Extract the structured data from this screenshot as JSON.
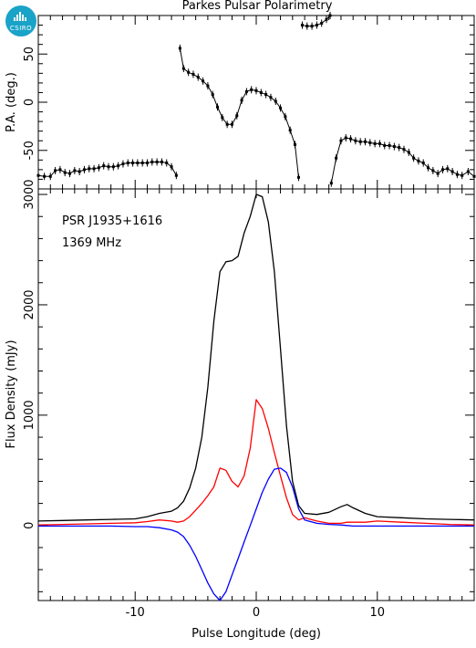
{
  "logo": {
    "text": "CSIRO",
    "color": "#1aa3c8"
  },
  "chart_data": [
    {
      "type": "scatter",
      "title": "Parkes Pulsar Polarimetry",
      "ylabel": "P.A. (deg.)",
      "xlim": [
        -18,
        18
      ],
      "ylim": [
        -90,
        90
      ],
      "yticks": [
        -50,
        0,
        50
      ],
      "series": [
        {
          "color": "#000000",
          "x": [
            -18,
            -17.5,
            -17,
            -16.6,
            -16.2,
            -15.8,
            -15.4,
            -15,
            -14.6,
            -14.2,
            -13.8,
            -13.4,
            -13,
            -12.6,
            -12.2,
            -11.8,
            -11.4,
            -11,
            -10.6,
            -10.2,
            -9.8,
            -9.4,
            -9,
            -8.6,
            -8.2,
            -7.8,
            -7.4,
            -7,
            -6.6
          ],
          "y": [
            -76,
            -77,
            -77,
            -71,
            -70,
            -73,
            -74,
            -71,
            -72,
            -70,
            -69,
            -69,
            -68,
            -66,
            -67,
            -67,
            -66,
            -64,
            -63,
            -63,
            -63,
            -63,
            -63,
            -62,
            -62,
            -62,
            -63,
            -67,
            -76
          ]
        },
        {
          "color": "#000000",
          "x": [
            -6.3,
            -6.0,
            -5.6,
            -5.2,
            -4.8,
            -4.4,
            -4.0,
            -3.6,
            -3.2,
            -2.8,
            -2.4,
            -2.0,
            -1.6,
            -1.2,
            -0.8,
            -0.4,
            0,
            0.4,
            0.8,
            1.2,
            1.6,
            2.0,
            2.4,
            2.8,
            3.2,
            3.5
          ],
          "y": [
            56,
            35,
            31,
            29,
            26,
            22,
            17,
            8,
            -5,
            -16,
            -23,
            -23,
            -14,
            2,
            11,
            13,
            12,
            10,
            8,
            5,
            1,
            -6,
            -15,
            -29,
            -44,
            -78
          ]
        },
        {
          "color": "#000000",
          "x": [
            3.8,
            4.2,
            4.6,
            5.0,
            5.4,
            5.8,
            6.1
          ],
          "y": [
            80,
            79,
            79,
            80,
            82,
            86,
            90
          ]
        },
        {
          "color": "#000000",
          "x": [
            6.2,
            6.6,
            7.0,
            7.4,
            7.8,
            8.2,
            8.6,
            9.0,
            9.4,
            9.8,
            10.2,
            10.6,
            11,
            11.4,
            11.8,
            12.2,
            12.6,
            13,
            13.4,
            13.8,
            14.2,
            14.6,
            15,
            15.4,
            15.8,
            16.2,
            16.6,
            17,
            17.5,
            18
          ],
          "y": [
            -84,
            -58,
            -40,
            -37,
            -38,
            -40,
            -41,
            -41,
            -42,
            -43,
            -43,
            -45,
            -45,
            -46,
            -47,
            -49,
            -52,
            -58,
            -61,
            -63,
            -68,
            -71,
            -74,
            -70,
            -69,
            -72,
            -75,
            -76,
            -72,
            -77
          ]
        }
      ]
    },
    {
      "type": "line",
      "ylabel": "Flux Density (mJy)",
      "xlabel": "Pulse Longitude (deg)",
      "annotations": [
        "PSR J1935+1616",
        "1369 MHz"
      ],
      "xlim": [
        -18,
        18
      ],
      "ylim": [
        -680,
        3050
      ],
      "xticks": [
        -10,
        0,
        10
      ],
      "yticks": [
        0,
        1000,
        2000,
        3000
      ],
      "x": [
        -18,
        -16,
        -14,
        -12,
        -10,
        -9,
        -8,
        -7,
        -6.5,
        -6,
        -5.5,
        -5,
        -4.5,
        -4,
        -3.5,
        -3,
        -2.5,
        -2,
        -1.5,
        -1,
        -0.5,
        0,
        0.5,
        1,
        1.5,
        2,
        2.5,
        3,
        3.5,
        4,
        5,
        6,
        7,
        7.5,
        8,
        9,
        10,
        12,
        14,
        16,
        18
      ],
      "series": [
        {
          "color": "#000000",
          "values": [
            40,
            45,
            50,
            55,
            60,
            80,
            110,
            130,
            160,
            220,
            340,
            520,
            800,
            1250,
            1850,
            2300,
            2390,
            2400,
            2440,
            2650,
            2800,
            3000,
            2980,
            2750,
            2300,
            1600,
            900,
            400,
            180,
            110,
            100,
            120,
            170,
            190,
            160,
            110,
            80,
            70,
            60,
            55,
            50
          ]
        },
        {
          "color": "#ff0000",
          "values": [
            5,
            10,
            15,
            20,
            25,
            35,
            50,
            40,
            30,
            40,
            80,
            140,
            200,
            270,
            350,
            520,
            500,
            400,
            350,
            450,
            700,
            1140,
            1060,
            880,
            660,
            450,
            250,
            100,
            50,
            70,
            40,
            20,
            20,
            30,
            30,
            30,
            40,
            30,
            20,
            10,
            5
          ]
        },
        {
          "color": "#0000ff",
          "values": [
            -5,
            -5,
            -5,
            -5,
            -10,
            -10,
            -20,
            -40,
            -60,
            -100,
            -180,
            -280,
            -400,
            -520,
            -620,
            -680,
            -600,
            -450,
            -300,
            -150,
            0,
            150,
            300,
            420,
            510,
            520,
            480,
            350,
            150,
            50,
            20,
            10,
            5,
            0,
            -5,
            -5,
            -5,
            -5,
            -5,
            -5,
            -5
          ]
        }
      ]
    }
  ]
}
